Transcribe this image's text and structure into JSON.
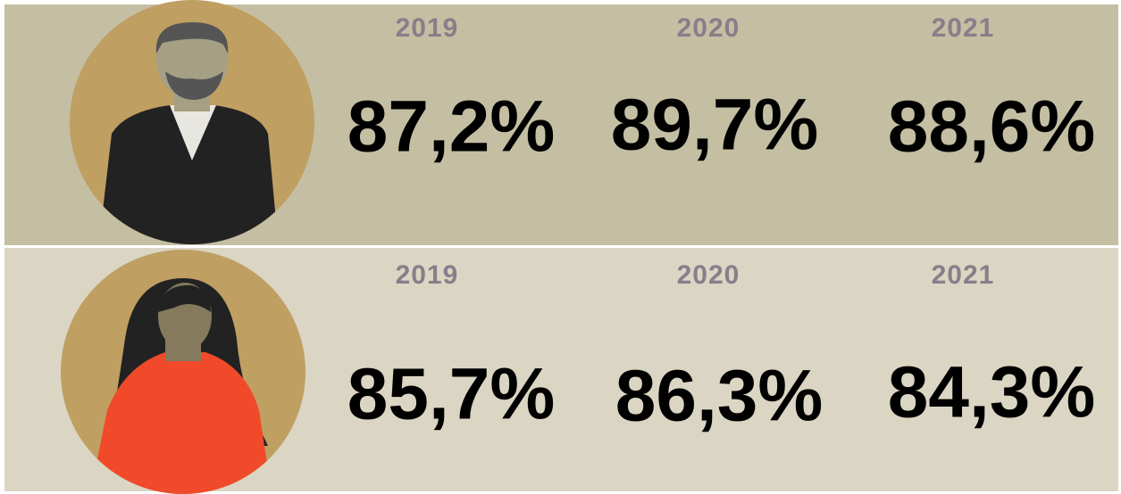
{
  "rows": [
    {
      "years": [
        "2019",
        "2020",
        "2021"
      ],
      "values": [
        "87,2%",
        "89,7%",
        "88,6%"
      ]
    },
    {
      "years": [
        "2019",
        "2020",
        "2021"
      ],
      "values": [
        "85,7%",
        "86,3%",
        "84,3%"
      ]
    }
  ]
}
